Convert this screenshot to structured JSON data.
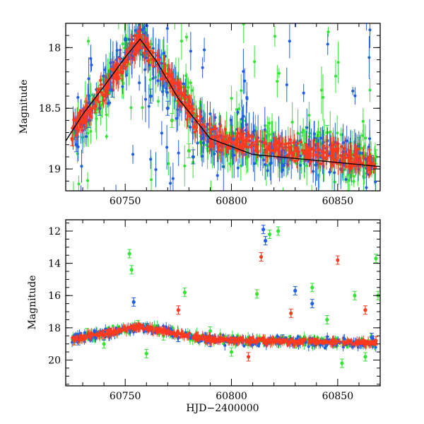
{
  "colors": {
    "green": "#33e633",
    "blue": "#1f5fe0",
    "red": "#ff3a1f",
    "axis": "#000000"
  },
  "chart_data": [
    {
      "type": "scatter",
      "panel": "top",
      "title": "",
      "xlabel": "",
      "ylabel": "Magnitude",
      "xlim": [
        60722,
        60870
      ],
      "ylim": [
        19.18,
        17.8
      ],
      "y_inverted": true,
      "x_ticks": [
        60750,
        60800,
        60850
      ],
      "x_tick_labels": [
        "60750",
        "60800",
        "60850"
      ],
      "y_ticks": [
        18,
        18.5,
        19
      ],
      "y_tick_labels": [
        "18",
        "18.5",
        "19"
      ],
      "grid": false,
      "legend": "none",
      "model_curve": {
        "color": "#000000",
        "x": [
          60722,
          60730,
          60740,
          60750,
          60757,
          60765,
          60775,
          60790,
          60810,
          60870
        ],
        "y": [
          18.77,
          18.55,
          18.32,
          18.08,
          17.93,
          18.12,
          18.42,
          18.75,
          18.88,
          18.98
        ]
      },
      "series": [
        {
          "color": "green",
          "points": [
            [
              60726,
              18.7
            ],
            [
              60730,
              18.6
            ],
            [
              60735,
              18.45
            ],
            [
              60740,
              18.3
            ],
            [
              60745,
              18.2
            ],
            [
              60752,
              18.0
            ],
            [
              60760,
              18.0
            ],
            [
              60768,
              18.3
            ],
            [
              60772,
              18.6
            ],
            [
              60780,
              18.85
            ],
            [
              60790,
              18.8
            ],
            [
              60800,
              18.7
            ],
            [
              60815,
              18.75
            ],
            [
              60830,
              18.85
            ],
            [
              60845,
              18.7
            ],
            [
              60860,
              18.8
            ],
            [
              60868,
              18.9
            ]
          ]
        },
        {
          "color": "blue",
          "points": [
            [
              60727,
              18.8
            ],
            [
              60733,
              18.6
            ],
            [
              60738,
              18.5
            ],
            [
              60744,
              18.35
            ],
            [
              60750,
              18.1
            ],
            [
              60758,
              18.0
            ],
            [
              60762,
              18.4
            ],
            [
              60770,
              18.5
            ],
            [
              60782,
              18.9
            ],
            [
              60795,
              18.8
            ],
            [
              60812,
              18.8
            ],
            [
              60825,
              18.9
            ],
            [
              60840,
              18.8
            ],
            [
              60855,
              18.9
            ],
            [
              60866,
              18.95
            ]
          ]
        },
        {
          "color": "red",
          "points": [
            [
              60725,
              18.75
            ],
            [
              60730,
              18.62
            ],
            [
              60736,
              18.48
            ],
            [
              60742,
              18.33
            ],
            [
              60748,
              18.2
            ],
            [
              60754,
              18.05
            ],
            [
              60758,
              17.95
            ],
            [
              60764,
              18.1
            ],
            [
              60772,
              18.3
            ],
            [
              60780,
              18.5
            ],
            [
              60790,
              18.7
            ],
            [
              60805,
              18.8
            ],
            [
              60820,
              18.8
            ],
            [
              60835,
              18.85
            ],
            [
              60850,
              18.85
            ],
            [
              60865,
              18.9
            ]
          ]
        }
      ]
    },
    {
      "type": "scatter",
      "panel": "bottom",
      "title": "",
      "xlabel": "HJD−2400000",
      "ylabel": "Magnitude",
      "xlim": [
        60722,
        60870
      ],
      "ylim": [
        21.6,
        11.3
      ],
      "y_inverted": true,
      "x_ticks": [
        60750,
        60800,
        60850
      ],
      "x_tick_labels": [
        "60750",
        "60800",
        "60850"
      ],
      "y_ticks": [
        12,
        14,
        16,
        18,
        20
      ],
      "y_tick_labels": [
        "12",
        "14",
        "16",
        "18",
        "20"
      ],
      "grid": false,
      "legend": "none",
      "series": [
        {
          "color": "green",
          "points": [
            [
              60726,
              18.8
            ],
            [
              60732,
              18.3
            ],
            [
              60740,
              19.0
            ],
            [
              60752,
              13.4
            ],
            [
              60753,
              14.4
            ],
            [
              60756,
              17.8
            ],
            [
              60760,
              19.6
            ],
            [
              60768,
              18.5
            ],
            [
              60778,
              15.8
            ],
            [
              60790,
              18.2
            ],
            [
              60800,
              19.5
            ],
            [
              60812,
              15.9
            ],
            [
              60818,
              12.2
            ],
            [
              60822,
              12.0
            ],
            [
              60830,
              19.0
            ],
            [
              60838,
              15.5
            ],
            [
              60845,
              17.5
            ],
            [
              60852,
              20.2
            ],
            [
              60858,
              16.0
            ],
            [
              60863,
              19.8
            ],
            [
              60868,
              13.7
            ],
            [
              60869,
              16.0
            ]
          ]
        },
        {
          "color": "blue",
          "points": [
            [
              60728,
              18.8
            ],
            [
              60740,
              18.5
            ],
            [
              60754,
              16.4
            ],
            [
              60760,
              18.0
            ],
            [
              60775,
              18.6
            ],
            [
              60790,
              18.9
            ],
            [
              60815,
              11.9
            ],
            [
              60816,
              12.6
            ],
            [
              60824,
              18.7
            ],
            [
              60830,
              15.7
            ],
            [
              60838,
              16.5
            ],
            [
              60845,
              18.8
            ],
            [
              60860,
              19.0
            ],
            [
              60866,
              18.6
            ]
          ]
        },
        {
          "color": "red",
          "points": [
            [
              60726,
              18.8
            ],
            [
              60740,
              18.4
            ],
            [
              60756,
              18.0
            ],
            [
              60775,
              16.9
            ],
            [
              60790,
              18.8
            ],
            [
              60808,
              19.8
            ],
            [
              60814,
              13.6
            ],
            [
              60828,
              17.1
            ],
            [
              60850,
              13.8
            ],
            [
              60863,
              16.9
            ],
            [
              60868,
              18.8
            ]
          ]
        }
      ]
    }
  ]
}
